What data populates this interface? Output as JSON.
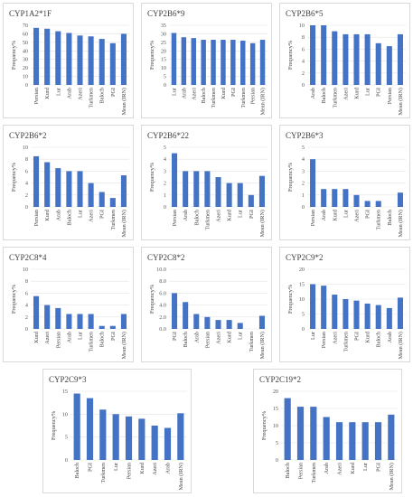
{
  "chart_data": [
    {
      "type": "bar",
      "title": "CYP1A2*1F",
      "ylabel": "Frequency%",
      "ylim": [
        0,
        70
      ],
      "yticks": [
        0,
        10,
        20,
        30,
        40,
        50,
        60,
        70
      ],
      "categories": [
        "Persian",
        "Kurd",
        "Lur",
        "Arab",
        "Azeri",
        "Turkmen",
        "Baloch",
        "PGI",
        "Mean (IRN)"
      ],
      "values": [
        67,
        66,
        63,
        61,
        58,
        57,
        54,
        49,
        60
      ]
    },
    {
      "type": "bar",
      "title": "CYP2B6*9",
      "ylabel": "Frequency%",
      "ylim": [
        0,
        35
      ],
      "yticks": [
        0,
        5,
        10,
        15,
        20,
        25,
        30,
        35
      ],
      "categories": [
        "Lur",
        "Arab",
        "Azeri",
        "Baloch",
        "Turkmen",
        "Kurd",
        "PGI",
        "Turkmen",
        "Persian",
        "Mean (IRN)"
      ],
      "values": [
        30.5,
        28,
        27.5,
        26.5,
        26.5,
        26.5,
        26.5,
        26,
        24.5,
        26.5
      ]
    },
    {
      "type": "bar",
      "title": "CYP2B6*5",
      "ylabel": "Frequency%",
      "ylim": [
        0,
        10
      ],
      "yticks": [
        0,
        2,
        4,
        6,
        8,
        10
      ],
      "categories": [
        "Arab",
        "Baloch",
        "Turkmen",
        "Azeri",
        "Kurd",
        "Lur",
        "PGI",
        "Persian",
        "Mean (IRN)"
      ],
      "values": [
        10,
        10,
        9,
        8.5,
        8.5,
        8.5,
        7,
        6.5,
        8.5
      ]
    },
    {
      "type": "bar",
      "title": "CYP2B6*2",
      "ylabel": "Frequency%",
      "ylim": [
        0,
        10
      ],
      "yticks": [
        0,
        2,
        4,
        6,
        8,
        10
      ],
      "categories": [
        "Persian",
        "Kurd",
        "Arab",
        "Baloch",
        "Lur",
        "Azeri",
        "PGI",
        "Turkmen",
        "Mean (IRN)"
      ],
      "values": [
        8.5,
        7.5,
        6.5,
        6,
        6,
        4,
        2.5,
        1.5,
        5.3
      ]
    },
    {
      "type": "bar",
      "title": "CYP2B6*22",
      "ylabel": "Frequency%",
      "ylim": [
        0,
        5
      ],
      "yticks": [
        0,
        1,
        2,
        3,
        4,
        5
      ],
      "categories": [
        "Persian",
        "Arab",
        "Baloch",
        "Turkmen",
        "Azeri",
        "Kurd",
        "Lur",
        "PGI",
        "Mean (IRN)"
      ],
      "values": [
        4.5,
        3,
        3,
        3,
        2.5,
        2,
        2,
        1,
        2.6
      ]
    },
    {
      "type": "bar",
      "title": "CYP2B6*3",
      "ylabel": "Frequency%",
      "ylim": [
        0,
        5
      ],
      "yticks": [
        0,
        1,
        2,
        3,
        4,
        5
      ],
      "categories": [
        "Persian",
        "Arab",
        "Kurd",
        "Lur",
        "Azeri",
        "PGI",
        "Turkmen",
        "Baloch",
        "Mean (IRN)"
      ],
      "values": [
        4,
        1.5,
        1.5,
        1.5,
        1,
        0.5,
        0.5,
        0,
        1.2
      ]
    },
    {
      "type": "bar",
      "title": "CYP2C8*4",
      "ylabel": "Frequency%",
      "ylim": [
        0,
        10
      ],
      "yticks": [
        0,
        2,
        4,
        6,
        8,
        10
      ],
      "categories": [
        "Kurd",
        "Azeri",
        "Persian",
        "Arab",
        "Lur",
        "Turkmen",
        "Baloch",
        "PGI",
        "Mean (IRN)"
      ],
      "values": [
        5.5,
        4,
        3.5,
        2.5,
        2.5,
        2.5,
        0.5,
        0.5,
        2.5
      ]
    },
    {
      "type": "bar",
      "title": "CYP2C8*2",
      "ylabel": "Frequency%",
      "ylim": [
        0,
        10
      ],
      "yticks": [
        0.0,
        2.0,
        4.0,
        6.0,
        8.0,
        10.0
      ],
      "categories": [
        "PGI",
        "Baloch",
        "Arab",
        "Persian",
        "Azeri",
        "Kurd",
        "Lur",
        "Turkmen",
        "Mean (IRN)"
      ],
      "values": [
        6,
        4.5,
        2.5,
        2,
        1.5,
        1.5,
        1,
        0,
        2.2
      ]
    },
    {
      "type": "bar",
      "title": "CYP2C9*2",
      "ylabel": "Frequency%",
      "ylim": [
        0,
        20
      ],
      "yticks": [
        0,
        5,
        10,
        15,
        20
      ],
      "categories": [
        "Lur",
        "Persian",
        "Azeri",
        "Turkmen",
        "PGI",
        "Kurd",
        "Baloch",
        "Arab",
        "Mean (IRN)"
      ],
      "values": [
        15,
        14.5,
        11.5,
        10,
        9.5,
        8.5,
        8,
        7,
        10.5
      ]
    },
    {
      "type": "bar",
      "title": "CYP2C9*3",
      "ylabel": "Frequency%",
      "ylim": [
        0,
        15
      ],
      "yticks": [
        0,
        5,
        10,
        15
      ],
      "categories": [
        "Baloch",
        "PGI",
        "Turkmen",
        "Lur",
        "Persian",
        "Kurd",
        "Azeri",
        "Arab",
        "Mean (IRN)"
      ],
      "values": [
        14.5,
        13.5,
        11,
        10,
        9.5,
        9,
        7.5,
        7,
        10.2
      ]
    },
    {
      "type": "bar",
      "title": "CYP2C19*2",
      "ylabel": "Frequency%",
      "ylim": [
        0,
        20
      ],
      "yticks": [
        0,
        5,
        10,
        15,
        20
      ],
      "categories": [
        "Baloch",
        "Persian",
        "Turkmen",
        "Arab",
        "Azeri",
        "Kurd",
        "Lur",
        "PGI",
        "Mean (IRN)"
      ],
      "values": [
        18,
        15.5,
        15.5,
        12.5,
        11,
        11,
        11,
        11,
        13.2
      ]
    }
  ],
  "colors": {
    "bar": "#4472c4",
    "grid": "#e3e3e3",
    "border": "#d9d9d9"
  }
}
